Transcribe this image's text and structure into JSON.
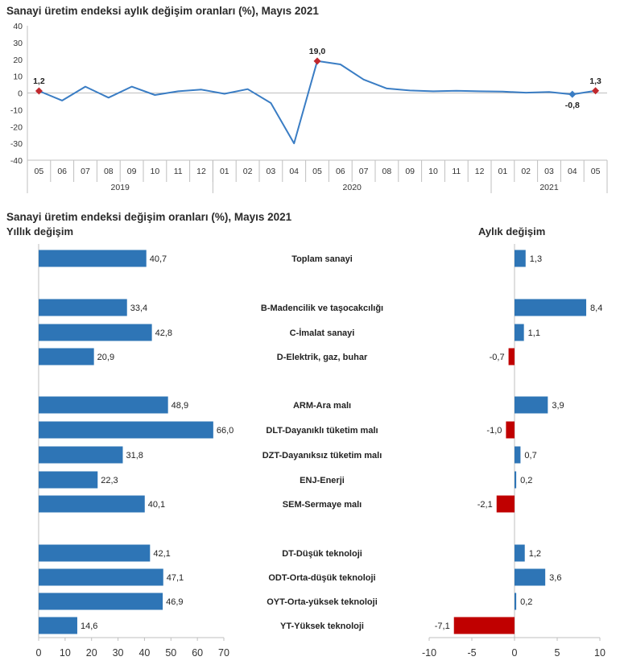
{
  "top_title": "Sanayi üretim endeksi aylık değişim oranları (%), Mayıs 2021",
  "bottom_title": "Sanayi üretim endeksi değişim oranları (%), Mayıs 2021",
  "left_subtitle": "Yıllık değişim",
  "right_subtitle": "Aylık değişim",
  "colors": {
    "line": "#3a7dc4",
    "bar_blue": "#2e75b6",
    "bar_red": "#c00000",
    "marker": "#c0282d"
  },
  "chart_data": [
    {
      "type": "line",
      "title": "Sanayi üretim endeksi aylık değişim oranları (%), Mayıs 2021",
      "x": [
        "05",
        "06",
        "07",
        "08",
        "09",
        "10",
        "11",
        "12",
        "01",
        "02",
        "03",
        "04",
        "05",
        "06",
        "07",
        "08",
        "09",
        "10",
        "11",
        "12",
        "01",
        "02",
        "03",
        "04",
        "05"
      ],
      "year_groups": [
        {
          "label": "2019",
          "count": 8
        },
        {
          "label": "2020",
          "count": 12
        },
        {
          "label": "2021",
          "count": 5
        }
      ],
      "values": [
        1.2,
        -4.5,
        3.8,
        -2.8,
        3.8,
        -1.2,
        1.0,
        2.0,
        -0.5,
        2.3,
        -6.0,
        -30.0,
        19.0,
        17.0,
        8.0,
        2.7,
        1.5,
        1.0,
        1.3,
        1.0,
        0.8,
        0.2,
        0.6,
        -0.8,
        1.3
      ],
      "labels": [
        {
          "index": 0,
          "text": "1,2"
        },
        {
          "index": 12,
          "text": "19,0"
        },
        {
          "index": 23,
          "text": "-0,8"
        },
        {
          "index": 24,
          "text": "1,3"
        }
      ],
      "ylim": [
        -40,
        40
      ],
      "yticks": [
        "40",
        "30",
        "20",
        "10",
        "0",
        "-10",
        "-20",
        "-30",
        "-40"
      ],
      "grid": false
    },
    {
      "type": "bar",
      "orientation": "horizontal",
      "title": "Yıllık değişim",
      "categories": [
        "Toplam sanayi",
        "B-Madencilik ve taşocakcılığı",
        "C-İmalat sanayi",
        "D-Elektrik, gaz, buhar",
        "ARM-Ara malı",
        "DLT-Dayanıklı tüketim malı",
        "DZT-Dayanıksız tüketim malı",
        "ENJ-Enerji",
        "SEM-Sermaye malı",
        "DT-Düşük teknoloji",
        "ODT-Orta-düşük teknoloji",
        "OYT-Orta-yüksek teknoloji",
        "YT-Yüksek teknoloji"
      ],
      "values": [
        40.7,
        33.4,
        42.8,
        20.9,
        48.9,
        66.0,
        31.8,
        22.3,
        40.1,
        42.1,
        47.1,
        46.9,
        14.6
      ],
      "value_labels": [
        "40,7",
        "33,4",
        "42,8",
        "20,9",
        "48,9",
        "66,0",
        "31,8",
        "22,3",
        "40,1",
        "42,1",
        "47,1",
        "46,9",
        "14,6"
      ],
      "xlim": [
        0,
        70
      ],
      "xticks": [
        "0",
        "10",
        "20",
        "30",
        "40",
        "50",
        "60",
        "70"
      ]
    },
    {
      "type": "bar",
      "orientation": "horizontal",
      "title": "Aylık değişim",
      "categories": [
        "Toplam sanayi",
        "B-Madencilik ve taşocakcılığı",
        "C-İmalat sanayi",
        "D-Elektrik, gaz, buhar",
        "ARM-Ara malı",
        "DLT-Dayanıklı tüketim malı",
        "DZT-Dayanıksız tüketim malı",
        "ENJ-Enerji",
        "SEM-Sermaye malı",
        "DT-Düşük teknoloji",
        "ODT-Orta-düşük teknoloji",
        "OYT-Orta-yüksek teknoloji",
        "YT-Yüksek teknoloji"
      ],
      "values": [
        1.3,
        8.4,
        1.1,
        -0.7,
        3.9,
        -1.0,
        0.7,
        0.2,
        -2.1,
        1.2,
        3.6,
        0.2,
        -7.1
      ],
      "value_labels": [
        "1,3",
        "8,4",
        "1,1",
        "-0,7",
        "3,9",
        "-1,0",
        "0,7",
        "0,2",
        "-2,1",
        "1,2",
        "3,6",
        "0,2",
        "-7,1"
      ],
      "xlim": [
        -10,
        10
      ],
      "xticks": [
        "-10",
        "-5",
        "0",
        "5",
        "10"
      ]
    }
  ]
}
